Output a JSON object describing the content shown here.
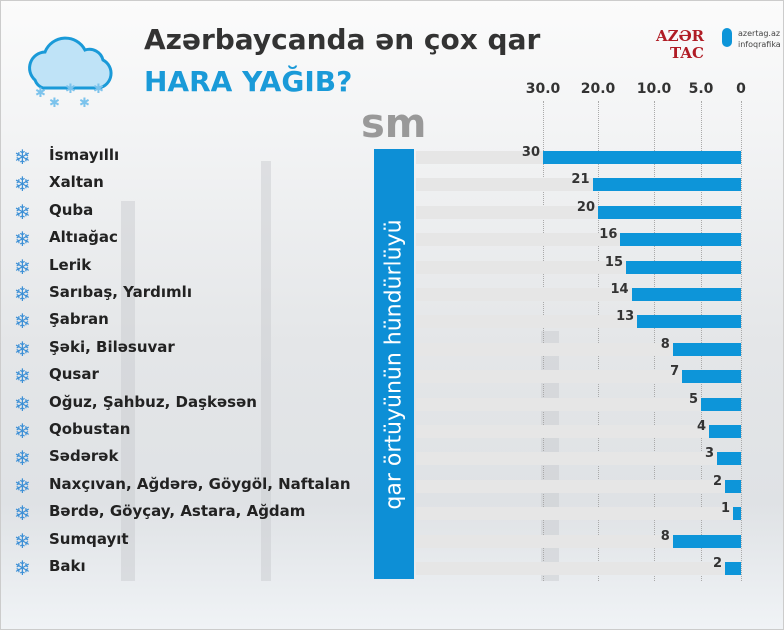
{
  "header": {
    "title_line1": "Azərbaycanda ən çox qar",
    "title_line2": "HARA YAĞIB?",
    "icon": "snow-cloud-icon"
  },
  "logo": {
    "text_top": "AZƏR",
    "text_bottom": "TAC",
    "site": "azertag.az",
    "section": "infoqrafika"
  },
  "accent_color": "#0d95d9",
  "chart_data": {
    "type": "bar",
    "orientation": "horizontal",
    "direction": "right-to-left",
    "unit": "sm",
    "ylabel": "qar örtüyünün hündürlüyü",
    "ticks": [
      "30.0",
      "20.0",
      "10.0",
      "5.0",
      "0"
    ],
    "tick_values": [
      30,
      20,
      10,
      5,
      0
    ],
    "grid": true,
    "categories": [
      "İsmayıllı",
      "Xaltan",
      "Quba",
      "Altıağac",
      "Lerik",
      "Sarıbaş, Yardımlı",
      "Şabran",
      "Şəki, Biləsuvar",
      "Qusar",
      "Oğuz, Şahbuz, Daşkəsən",
      "Qobustan",
      "Sədərək",
      "Naxçıvan, Ağdərə, Göygöl, Naftalan",
      "Bərdə, Göyçay, Astara, Ağdam",
      "Sumqayıt",
      "Bakı"
    ],
    "values": [
      30,
      21,
      20,
      16,
      15,
      14,
      13,
      8,
      7,
      5,
      4,
      3,
      2,
      1,
      8,
      2
    ],
    "value_labels": [
      "30",
      "21",
      "20",
      "16",
      "15",
      "14",
      "13",
      "8",
      "7",
      "5",
      "4",
      "3",
      "2",
      "1",
      "8",
      "2"
    ]
  }
}
